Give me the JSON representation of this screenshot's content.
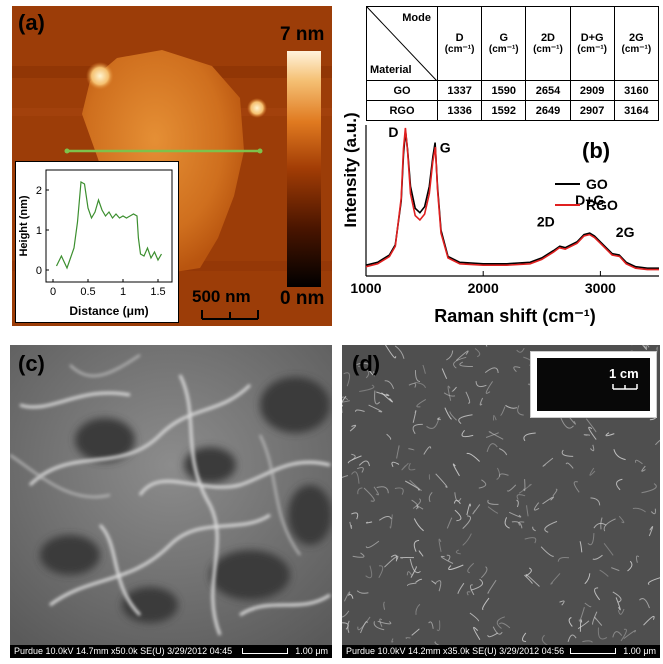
{
  "panel_a": {
    "label": "(a)",
    "colorbar_max": "7 nm",
    "colorbar_min": "0 nm",
    "scalebar": "500 nm",
    "inset": {
      "ylabel": "Height (nm)",
      "xlabel": "Distance (μm)",
      "yticks": [
        "0",
        "1",
        "2"
      ],
      "xticks": [
        "0",
        "0.5",
        "1",
        "1.5"
      ]
    },
    "profile_color": "#7ec24b",
    "height_profile": {
      "x": [
        0.05,
        0.12,
        0.2,
        0.25,
        0.3,
        0.35,
        0.4,
        0.45,
        0.5,
        0.55,
        0.6,
        0.65,
        0.7,
        0.75,
        0.8,
        0.85,
        0.9,
        0.95,
        1.0,
        1.05,
        1.1,
        1.15,
        1.2,
        1.22,
        1.25,
        1.3,
        1.35,
        1.4,
        1.45,
        1.5,
        1.55
      ],
      "y": [
        0.1,
        0.35,
        0.05,
        0.3,
        0.55,
        1.2,
        2.2,
        2.15,
        1.55,
        1.3,
        1.45,
        1.75,
        1.5,
        1.35,
        1.45,
        1.3,
        1.4,
        1.3,
        1.35,
        1.3,
        1.35,
        1.4,
        1.35,
        0.8,
        0.4,
        0.35,
        0.55,
        0.3,
        0.45,
        0.25,
        0.4
      ],
      "xlim": [
        -0.1,
        1.7
      ],
      "ylim": [
        -0.3,
        2.5
      ]
    }
  },
  "panel_b": {
    "label": "(b)",
    "table": {
      "corner_top": "Mode",
      "corner_bottom": "Material",
      "headers": [
        {
          "name": "D",
          "unit": "(cm⁻¹)"
        },
        {
          "name": "G",
          "unit": "(cm⁻¹)"
        },
        {
          "name": "2D",
          "unit": "(cm⁻¹)"
        },
        {
          "name": "D+G",
          "unit": "(cm⁻¹)"
        },
        {
          "name": "2G",
          "unit": "(cm⁻¹)"
        }
      ],
      "rows": [
        {
          "material": "GO",
          "values": [
            "1337",
            "1590",
            "2654",
            "2909",
            "3160"
          ]
        },
        {
          "material": "RGO",
          "values": [
            "1336",
            "1592",
            "2649",
            "2907",
            "3164"
          ]
        }
      ]
    }
  },
  "chart_data": {
    "type": "line",
    "xlabel": "Raman shift (cm⁻¹)",
    "ylabel": "Intensity (a.u.)",
    "xlim": [
      1000,
      3500
    ],
    "xticks": [
      "1000",
      "2000",
      "3000"
    ],
    "yticks": [],
    "legend_position": "right",
    "peak_labels": [
      {
        "text": "D",
        "x": 1337
      },
      {
        "text": "G",
        "x": 1590
      },
      {
        "text": "2D",
        "x": 2654
      },
      {
        "text": "D+G",
        "x": 2909
      },
      {
        "text": "2G",
        "x": 3160
      }
    ],
    "series": [
      {
        "name": "GO",
        "color": "#000000",
        "x": [
          1000,
          1100,
          1200,
          1250,
          1300,
          1320,
          1337,
          1355,
          1380,
          1420,
          1460,
          1500,
          1540,
          1570,
          1590,
          1610,
          1640,
          1700,
          1800,
          2000,
          2200,
          2400,
          2500,
          2600,
          2654,
          2700,
          2800,
          2860,
          2909,
          2950,
          3000,
          3100,
          3160,
          3220,
          3300,
          3400,
          3500
        ],
        "y": [
          0.06,
          0.08,
          0.13,
          0.2,
          0.5,
          0.82,
          0.98,
          0.85,
          0.6,
          0.45,
          0.42,
          0.46,
          0.6,
          0.8,
          0.9,
          0.6,
          0.3,
          0.12,
          0.08,
          0.07,
          0.07,
          0.08,
          0.11,
          0.16,
          0.19,
          0.18,
          0.22,
          0.27,
          0.28,
          0.26,
          0.22,
          0.14,
          0.13,
          0.08,
          0.05,
          0.04,
          0.04
        ]
      },
      {
        "name": "RGO",
        "color": "#e02020",
        "x": [
          1000,
          1100,
          1200,
          1250,
          1300,
          1320,
          1336,
          1355,
          1380,
          1420,
          1460,
          1500,
          1540,
          1570,
          1592,
          1610,
          1640,
          1700,
          1800,
          2000,
          2200,
          2400,
          2500,
          2600,
          2649,
          2700,
          2800,
          2860,
          2907,
          2950,
          3000,
          3100,
          3164,
          3220,
          3300,
          3400,
          3500
        ],
        "y": [
          0.05,
          0.07,
          0.12,
          0.19,
          0.52,
          0.86,
          1.0,
          0.84,
          0.55,
          0.4,
          0.37,
          0.41,
          0.55,
          0.77,
          0.87,
          0.58,
          0.28,
          0.11,
          0.07,
          0.06,
          0.06,
          0.07,
          0.1,
          0.15,
          0.18,
          0.17,
          0.21,
          0.26,
          0.27,
          0.25,
          0.21,
          0.13,
          0.12,
          0.07,
          0.04,
          0.03,
          0.03
        ]
      }
    ]
  },
  "panel_c": {
    "label": "(c)",
    "sem_info": "Purdue 10.0kV 14.7mm x50.0k SE(U) 3/29/2012 04:45",
    "scale": "1.00 μm"
  },
  "panel_d": {
    "label": "(d)",
    "sem_info": "Purdue 10.0kV 14.2mm x35.0k SE(U) 3/29/2012 04:56",
    "scale": "1.00 μm",
    "inset_scale": "1 cm"
  }
}
